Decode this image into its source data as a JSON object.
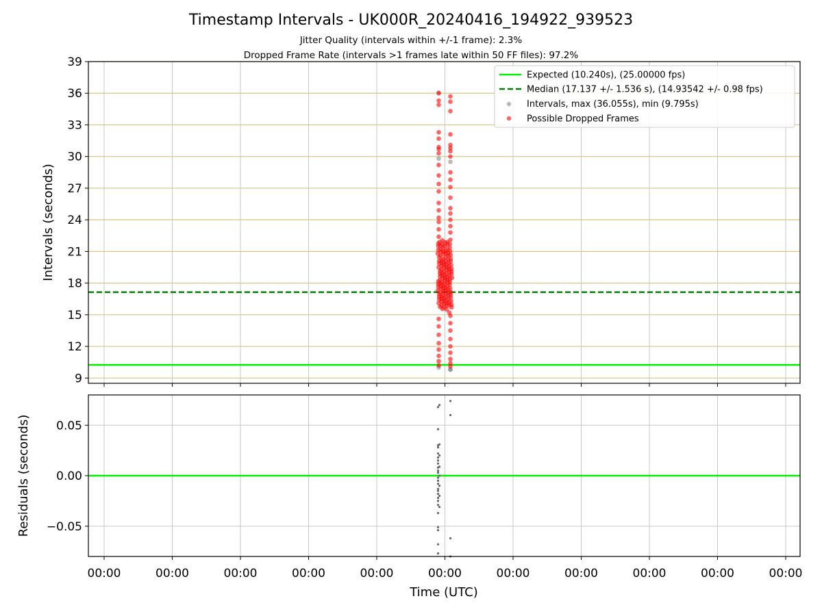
{
  "figure": {
    "title": "Timestamp Intervals - UK000R_20240416_194922_939523",
    "subtitle_1": "Jitter Quality (intervals within +/-1 frame): 2.3%",
    "subtitle_2": "Dropped Frame Rate (intervals >1 frames late within 50 FF files): 97.2%"
  },
  "colors": {
    "expected": "#00ee00",
    "median": "#007f00",
    "interval_points": "#808080",
    "dropped_points": "#ff0000",
    "residual_points": "#666666",
    "gold_grid": "#d8c384",
    "grid": "#c8c8c8"
  },
  "chart_data": [
    {
      "type": "scatter",
      "panel": "intervals",
      "ylabel": "Intervals (seconds)",
      "ylim": [
        8.5,
        39
      ],
      "yticks": [
        9,
        12,
        15,
        18,
        21,
        24,
        27,
        30,
        33,
        36,
        39
      ],
      "xticks": [
        "00:00",
        "00:00",
        "00:00",
        "00:00",
        "00:00",
        "00:00",
        "00:00",
        "00:00",
        "00:00",
        "00:00",
        "00:00"
      ],
      "grid": true,
      "legend_position": "top-right",
      "lines": {
        "expected": {
          "label": "Expected (10.240s), (25.00000 fps)",
          "value": 10.24
        },
        "median": {
          "label": "Median (17.137 +/- 1.536 s), (14.93542 +/- 0.98 fps)",
          "value": 17.137
        }
      },
      "series": [
        {
          "name": "Intervals, max (36.055s), min (9.795s)",
          "x_tick_index": 5,
          "values": [
            29.8,
            29.5,
            10.0,
            9.8,
            36.055,
            9.795
          ]
        },
        {
          "name": "Possible Dropped Frames",
          "x_tick_index": 5,
          "values": [
            36.0,
            35.7,
            35.3,
            35.2,
            34.9,
            34.3,
            32.3,
            32.1,
            31.7,
            31.1,
            30.9,
            30.8,
            30.7,
            30.5,
            30.3,
            30.0,
            29.2,
            28.5,
            28.2,
            27.8,
            27.4,
            27.1,
            26.7,
            26.1,
            25.6,
            25.1,
            24.9,
            24.6,
            24.2,
            24.0,
            23.8,
            23.4,
            23.1,
            22.8,
            22.4,
            22.1,
            21.9,
            21.7,
            21.5,
            21.2,
            21.0,
            20.8,
            20.6,
            20.3,
            20.1,
            19.9,
            19.7,
            19.5,
            19.3,
            19.1,
            18.9,
            18.7,
            18.5,
            18.3,
            18.1,
            17.9,
            17.7,
            17.5,
            17.3,
            17.1,
            16.9,
            16.7,
            16.5,
            16.3,
            16.1,
            15.9,
            15.7,
            15.5,
            15.2,
            14.9,
            14.6,
            14.2,
            13.9,
            13.5,
            13.1,
            12.7,
            12.3,
            12.0,
            11.7,
            11.4,
            11.1,
            10.8,
            10.6,
            10.4,
            10.2,
            10.1
          ]
        }
      ]
    },
    {
      "type": "scatter",
      "panel": "residuals",
      "xlabel": "Time (UTC)",
      "ylabel": "Residuals (seconds)",
      "ylim": [
        -0.08,
        0.08
      ],
      "yticks": [
        0.05,
        0.0,
        -0.05
      ],
      "ytick_labels": [
        "0.05",
        "0.00",
        "−0.05"
      ],
      "xticks": [
        "00:00",
        "00:00",
        "00:00",
        "00:00",
        "00:00",
        "00:00",
        "00:00",
        "00:00",
        "00:00",
        "00:00",
        "00:00"
      ],
      "grid": true,
      "zero_line": 0,
      "series": [
        {
          "name": "",
          "x_tick_index": 5,
          "values": [
            0.074,
            0.07,
            0.068,
            0.06,
            0.046,
            0.031,
            0.03,
            0.028,
            0.022,
            0.02,
            0.018,
            0.015,
            0.012,
            0.009,
            0.008,
            0.005,
            0.003,
            0.0,
            -0.002,
            -0.005,
            -0.008,
            -0.01,
            -0.013,
            -0.015,
            -0.018,
            -0.02,
            -0.022,
            -0.025,
            -0.029,
            -0.031,
            -0.037,
            -0.051,
            -0.054,
            -0.062,
            -0.068,
            -0.077,
            -0.08
          ]
        }
      ]
    }
  ]
}
